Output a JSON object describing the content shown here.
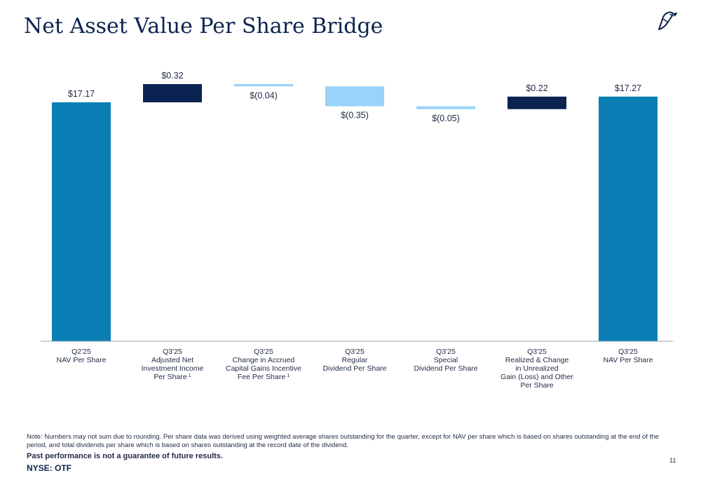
{
  "title": "Net Asset Value Per Share Bridge",
  "logo_icon": "bird-logo-icon",
  "colors": {
    "total": "#0b7fb5",
    "increase": "#0b2350",
    "decrease": "#99d3f9",
    "text": "#1f2a44"
  },
  "chart_data": {
    "type": "bar",
    "subtype": "waterfall",
    "title": "Net Asset Value Per Share Bridge",
    "categories": [
      [
        "Q2'25",
        "NAV Per Share"
      ],
      [
        "Q3'25",
        "Adjusted Net",
        "Investment Income",
        "Per Share"
      ],
      [
        "Q3'25",
        "Change in Accrued",
        "Capital Gains Incentive",
        "Fee Per Share"
      ],
      [
        "Q3'25",
        "Regular",
        "Dividend Per Share"
      ],
      [
        "Q3'25",
        "Special",
        "Dividend Per Share"
      ],
      [
        "Q3'25",
        "Realized & Change",
        "in Unrealized",
        "Gain (Loss) and Other",
        "Per Share"
      ],
      [
        "Q3'25",
        "NAV Per Share"
      ]
    ],
    "footnote_markers": [
      "",
      "1",
      "1",
      "",
      "",
      "",
      ""
    ],
    "values": [
      17.17,
      0.32,
      -0.04,
      -0.35,
      -0.05,
      0.22,
      17.27
    ],
    "kinds": [
      "total",
      "increase",
      "decrease",
      "decrease",
      "decrease",
      "increase",
      "total"
    ],
    "data_labels": [
      "$17.17",
      "$0.32",
      "$(0.04)",
      "$(0.35)",
      "$(0.05)",
      "$0.22",
      "$17.27"
    ],
    "xlabel": "",
    "ylabel": "",
    "ylim": [
      0,
      17.7
    ],
    "grid": false,
    "legend": "none"
  },
  "note": "Note: Numbers may not sum due to rounding. Per share data was derived using weighted average shares outstanding for the quarter, except for NAV per share which is based on shares outstanding at the end of the period, and total dividends per share which is based on shares outstanding at the record date of the dividend.",
  "disclaimer": "Past performance is not a guarantee of future results.",
  "ticker": "NYSE: OTF",
  "page_number": "11"
}
